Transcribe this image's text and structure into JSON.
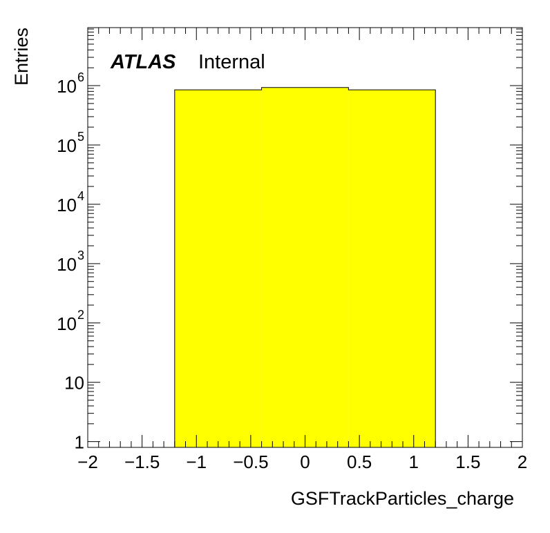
{
  "chart_data": {
    "type": "bar",
    "label": {
      "atlas": "ATLAS",
      "status": "Internal"
    },
    "xlabel": "GSFTrackParticles_charge",
    "ylabel": "Entries",
    "xlim": [
      -2,
      2
    ],
    "ylim": [
      0.8,
      9500000
    ],
    "y_scale": "log",
    "x_ticks": [
      {
        "v": -2,
        "t": "−2"
      },
      {
        "v": -1.5,
        "t": "−1.5"
      },
      {
        "v": -1,
        "t": "−1"
      },
      {
        "v": -0.5,
        "t": "−0.5"
      },
      {
        "v": 0,
        "t": "0"
      },
      {
        "v": 0.5,
        "t": "0.5"
      },
      {
        "v": 1,
        "t": "1"
      },
      {
        "v": 1.5,
        "t": "1.5"
      },
      {
        "v": 2,
        "t": "2"
      }
    ],
    "y_ticks": [
      {
        "v": 1,
        "base": "1",
        "exp": ""
      },
      {
        "v": 10,
        "base": "10",
        "exp": ""
      },
      {
        "v": 100,
        "base": "10",
        "exp": "2"
      },
      {
        "v": 1000,
        "base": "10",
        "exp": "3"
      },
      {
        "v": 10000,
        "base": "10",
        "exp": "4"
      },
      {
        "v": 100000,
        "base": "10",
        "exp": "5"
      },
      {
        "v": 1000000,
        "base": "10",
        "exp": "6"
      }
    ],
    "bins": [
      {
        "low": -1.2,
        "high": -0.4,
        "value": 850000
      },
      {
        "low": -0.4,
        "high": 0.4,
        "value": 930000
      },
      {
        "low": 0.4,
        "high": 1.2,
        "value": 850000
      }
    ],
    "fill_color": "#ffff00",
    "line_color": "#000000"
  }
}
